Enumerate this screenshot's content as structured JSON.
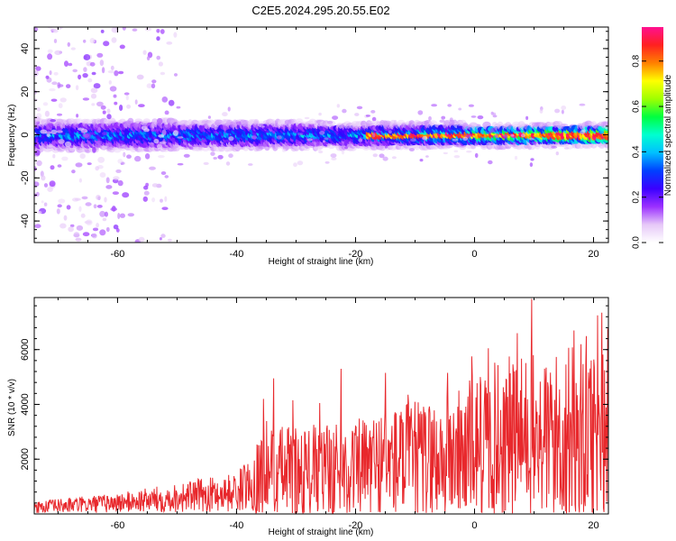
{
  "title": "C2E5.2024.295.20.55.E02",
  "chart_data": [
    {
      "type": "heatmap",
      "xlabel": "Height of straight line (km)",
      "ylabel": "Frequency (Hz)",
      "xlim": [
        -74,
        22.5
      ],
      "ylim": [
        -50,
        50
      ],
      "xticks": [
        -60,
        -40,
        -20,
        0,
        20
      ],
      "yticks": [
        -40,
        -20,
        0,
        20,
        40
      ],
      "description_values": {
        "ridge_frequency_hz": 0,
        "ridge_halfwidth_hz_left": 5,
        "ridge_halfwidth_hz_right": 3,
        "ridge_amplitude_left": 0.4,
        "ridge_amplitude_right": 0.85,
        "scatter_region_km": [
          -74,
          -50
        ]
      },
      "colorbar": {
        "label": "Normalized spectral amplitude",
        "range": [
          0,
          0.95
        ],
        "ticks": [
          0.0,
          0.2,
          0.4,
          0.6,
          0.8
        ],
        "tick_labels": [
          "0.0",
          "0.2",
          "0.4",
          "0.6",
          "0.8"
        ],
        "colors": [
          "#ffffff",
          "#e6c8f8",
          "#9b30ff",
          "#3a00ff",
          "#0040ff",
          "#00c0ff",
          "#00ffd0",
          "#00ff40",
          "#a0ff00",
          "#ffff00",
          "#ff8000",
          "#ff2020",
          "#ff1090"
        ]
      }
    },
    {
      "type": "line",
      "xlabel": "Height of straight line (km)",
      "ylabel": "SNR (10 * v/v)",
      "xlim": [
        -74,
        22.5
      ],
      "ylim": [
        0,
        7900
      ],
      "xticks": [
        -60,
        -40,
        -20,
        0,
        20
      ],
      "yticks": [
        2000,
        4000,
        6000
      ],
      "color": "#e8282c",
      "trend_points_km_snr": [
        [
          -74,
          250
        ],
        [
          -60,
          400
        ],
        [
          -50,
          600
        ],
        [
          -40,
          800
        ],
        [
          -37,
          1200
        ],
        [
          -35,
          1600
        ],
        [
          -30,
          1500
        ],
        [
          -25,
          1550
        ],
        [
          -20,
          1600
        ],
        [
          -15,
          1850
        ],
        [
          -10,
          1950
        ],
        [
          -5,
          2000
        ],
        [
          0,
          2400
        ],
        [
          5,
          2700
        ],
        [
          10,
          2700
        ],
        [
          15,
          2800
        ],
        [
          20,
          3100
        ],
        [
          22.5,
          3300
        ]
      ],
      "peaks_km_snr": [
        [
          -35.5,
          4200
        ],
        [
          -33.8,
          4950
        ],
        [
          -30.5,
          4150
        ],
        [
          -26,
          4050
        ],
        [
          -22.4,
          5300
        ],
        [
          -15,
          5150
        ],
        [
          -11.2,
          4350
        ],
        [
          -4.5,
          5150
        ],
        [
          -0.5,
          5750
        ],
        [
          2.3,
          6050
        ],
        [
          7.2,
          6600
        ],
        [
          9.6,
          7850
        ],
        [
          16.7,
          6700
        ],
        [
          20.7,
          7250
        ],
        [
          21.4,
          7350
        ]
      ]
    }
  ]
}
